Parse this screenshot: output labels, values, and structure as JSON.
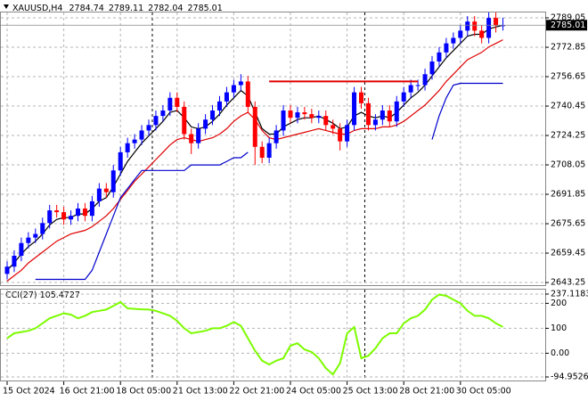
{
  "chart_data": [
    {
      "type": "candlestick",
      "title": "XAUUSD,H4",
      "categories": [
        "15 Oct 2024",
        null,
        null,
        null,
        null,
        null,
        null,
        null,
        "16 Oct 21:00",
        null,
        null,
        null,
        null,
        null,
        null,
        null,
        "18 Oct 05:00",
        null,
        null,
        null,
        null,
        null,
        null,
        null,
        "21 Oct 13:00",
        null,
        null,
        null,
        null,
        null,
        null,
        null,
        "22 Oct 21:00",
        null,
        null,
        null,
        null,
        null,
        null,
        null,
        "24 Oct 05:00",
        null,
        null,
        null,
        null,
        null,
        null,
        null,
        "25 Oct 13:00",
        null,
        null,
        null,
        null,
        null,
        null,
        null,
        "28 Oct 21:00",
        null,
        null,
        null,
        null,
        null,
        null,
        null,
        "30 Oct 05:00",
        null,
        null,
        null,
        null,
        null,
        null
      ],
      "open": [
        2648,
        2652,
        2658,
        2665,
        2668,
        2670,
        2676,
        2683,
        2682,
        2678,
        2680,
        2684,
        2680,
        2688,
        2695,
        2693,
        2705,
        2715,
        2720,
        2722,
        2727,
        2730,
        2735,
        2738,
        2745,
        2740,
        2725,
        2720,
        2728,
        2733,
        2738,
        2743,
        2748,
        2752,
        2754,
        2740,
        2718,
        2712,
        2720,
        2727,
        2738,
        2734,
        2737,
        2736,
        2734,
        2735,
        2730,
        2728,
        2721,
        2730,
        2748,
        2742,
        2730,
        2733,
        2738,
        2732,
        2743,
        2748,
        2752,
        2752,
        2758,
        2765,
        2770,
        2775,
        2778,
        2782,
        2787,
        2782,
        2778,
        2789,
        2784.74
      ],
      "high": [
        2655,
        2661,
        2668,
        2671,
        2673,
        2679,
        2686,
        2686,
        2685,
        2683,
        2687,
        2687,
        2691,
        2698,
        2698,
        2708,
        2718,
        2723,
        2725,
        2730,
        2733,
        2738,
        2741,
        2748,
        2748,
        2743,
        2728,
        2731,
        2736,
        2741,
        2746,
        2751,
        2755,
        2758,
        2757,
        2743,
        2721,
        2723,
        2730,
        2741,
        2741,
        2740,
        2740,
        2739,
        2738,
        2738,
        2733,
        2731,
        2733,
        2751,
        2751,
        2745,
        2736,
        2741,
        2741,
        2746,
        2751,
        2755,
        2755,
        2761,
        2768,
        2773,
        2778,
        2781,
        2785,
        2790,
        2790,
        2785,
        2792,
        2792,
        2789.11
      ],
      "low": [
        2645,
        2649,
        2655,
        2662,
        2665,
        2667,
        2673,
        2679,
        2675,
        2675,
        2677,
        2677,
        2677,
        2685,
        2690,
        2690,
        2702,
        2712,
        2717,
        2719,
        2724,
        2727,
        2732,
        2735,
        2737,
        2722,
        2714,
        2717,
        2725,
        2730,
        2735,
        2740,
        2745,
        2749,
        2737,
        2708,
        2709,
        2709,
        2717,
        2724,
        2731,
        2731,
        2733,
        2731,
        2731,
        2727,
        2725,
        2716,
        2718,
        2727,
        2739,
        2727,
        2727,
        2730,
        2729,
        2729,
        2740,
        2745,
        2749,
        2749,
        2755,
        2762,
        2767,
        2772,
        2775,
        2779,
        2779,
        2775,
        2775,
        2781,
        2782.04
      ],
      "close": [
        2652,
        2658,
        2665,
        2668,
        2670,
        2676,
        2683,
        2682,
        2678,
        2680,
        2684,
        2680,
        2688,
        2695,
        2693,
        2705,
        2715,
        2720,
        2722,
        2727,
        2730,
        2735,
        2738,
        2745,
        2740,
        2725,
        2720,
        2728,
        2733,
        2738,
        2743,
        2748,
        2752,
        2754,
        2740,
        2718,
        2712,
        2720,
        2727,
        2738,
        2734,
        2737,
        2736,
        2734,
        2735,
        2730,
        2728,
        2721,
        2730,
        2748,
        2742,
        2730,
        2733,
        2738,
        2732,
        2743,
        2748,
        2752,
        2752,
        2758,
        2765,
        2770,
        2775,
        2778,
        2782,
        2787,
        2782,
        2778,
        2789,
        2784.74,
        2785.01
      ],
      "up_color": "#0000ff",
      "down_color": "#ff0000",
      "lines": [
        {
          "color": "#000000",
          "values": [
            2650,
            2654,
            2659,
            2663,
            2666,
            2670,
            2675,
            2678,
            2679,
            2679,
            2681,
            2681,
            2684,
            2688,
            2690,
            2696,
            2703,
            2710,
            2715,
            2720,
            2724,
            2728,
            2732,
            2737,
            2738,
            2734,
            2729,
            2728,
            2729,
            2732,
            2736,
            2741,
            2745,
            2749,
            2746,
            2737,
            2728,
            2725,
            2725,
            2729,
            2731,
            2733,
            2734,
            2734,
            2735,
            2733,
            2731,
            2728,
            2729,
            2735,
            2737,
            2735,
            2734,
            2735,
            2734,
            2737,
            2741,
            2745,
            2748,
            2752,
            2757,
            2762,
            2767,
            2771,
            2775,
            2779,
            2780,
            2780,
            2783,
            2784,
            2785
          ]
        },
        {
          "color": "#e00000",
          "values": [
            2644,
            2647,
            2650,
            2654,
            2657,
            2660,
            2663,
            2666,
            2668,
            2670,
            2671,
            2672,
            2674,
            2677,
            2680,
            2684,
            2689,
            2694,
            2699,
            2703,
            2707,
            2711,
            2715,
            2719,
            2722,
            2723,
            2722,
            2721,
            2722,
            2723,
            2725,
            2728,
            2732,
            2735,
            2737,
            2733,
            2727,
            2723,
            2722,
            2723,
            2724,
            2725,
            2726,
            2727,
            2728,
            2727,
            2726,
            2725,
            2725,
            2727,
            2728,
            2728,
            2728,
            2729,
            2729,
            2730,
            2732,
            2735,
            2738,
            2741,
            2745,
            2749,
            2754,
            2758,
            2762,
            2766,
            2768,
            2770,
            2773,
            2775,
            2777
          ]
        },
        {
          "color": "#0000cc",
          "values": [
            null,
            null,
            null,
            null,
            2645,
            2645,
            2645,
            2645,
            2645,
            2645,
            2645,
            2645,
            2650,
            2660,
            2670,
            2680,
            2690,
            2695,
            2700,
            2705,
            2705,
            2705,
            2705,
            2705,
            2705,
            2705,
            2708,
            2708,
            2708,
            2708,
            2708,
            2710,
            2712,
            2712,
            2715,
            null,
            null,
            null,
            null,
            null,
            null,
            null,
            null,
            null,
            null,
            null,
            null,
            null,
            null,
            null,
            null,
            null,
            null,
            null,
            null,
            null,
            null,
            null,
            null,
            null,
            2722,
            2735,
            2745,
            2752,
            2753,
            2753,
            2753,
            2753,
            2753,
            2753,
            2753
          ]
        }
      ],
      "resistance": {
        "value": 2754,
        "color": "#e00000"
      },
      "ylim": [
        2641.8,
        2792.5
      ],
      "yticks": [
        2789.05,
        2772.85,
        2756.65,
        2740.45,
        2724.25,
        2708.05,
        2691.85,
        2675.65,
        2659.45,
        2643.25
      ],
      "grid": true
    },
    {
      "type": "line",
      "title": "CCI(27)",
      "values": [
        60,
        80,
        85,
        90,
        100,
        120,
        140,
        150,
        160,
        155,
        140,
        150,
        165,
        170,
        175,
        190,
        205,
        180,
        178,
        176,
        175,
        170,
        160,
        150,
        130,
        100,
        80,
        85,
        90,
        100,
        100,
        110,
        125,
        110,
        60,
        10,
        -30,
        -45,
        -30,
        -20,
        30,
        40,
        15,
        5,
        -20,
        -60,
        -85,
        -40,
        80,
        105,
        -20,
        -10,
        20,
        60,
        80,
        80,
        120,
        140,
        150,
        175,
        215,
        235,
        230,
        215,
        200,
        170,
        150,
        150,
        140,
        120,
        105.4727
      ],
      "color": "#7cfc00",
      "ylim": [
        -94.9526,
        237.1183
      ],
      "yticks": [
        237.1183,
        200,
        100,
        {
          "value": 0,
          "label": "0.00"
        },
        -94.9526
      ],
      "grid": true
    }
  ]
}
